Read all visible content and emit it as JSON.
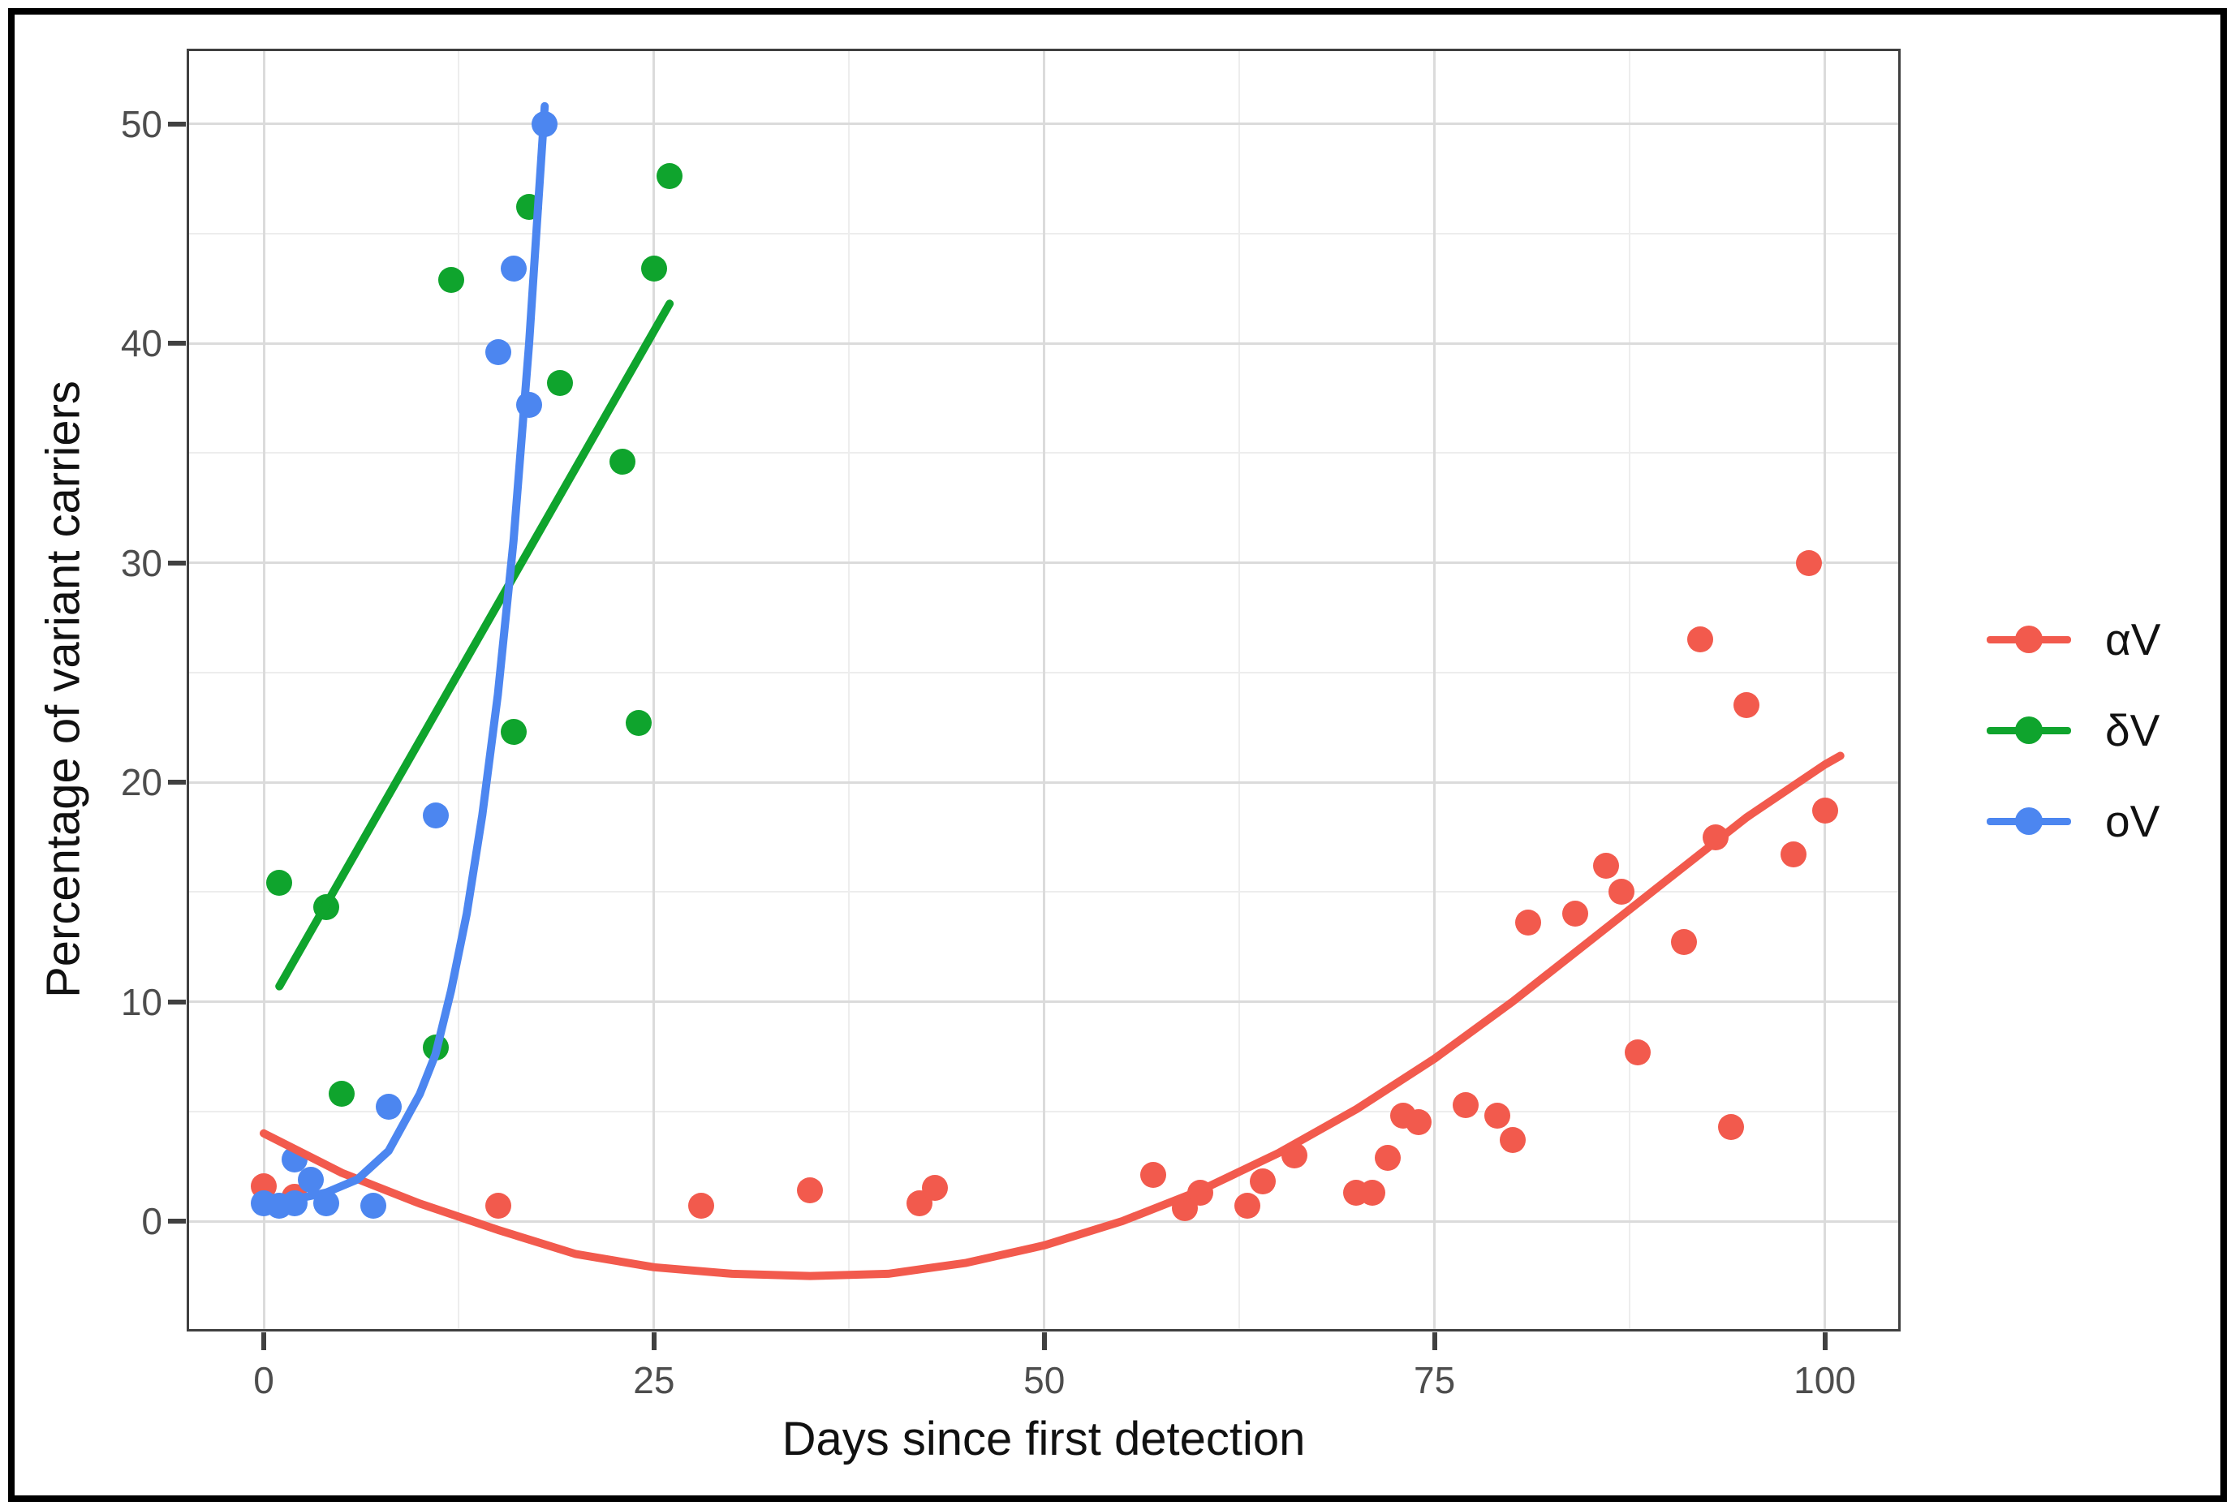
{
  "figure": {
    "background": "#ffffff",
    "frame_color": "#000000",
    "panel_border_color": "#404040",
    "gridline_major_color": "#dbdbdb",
    "gridline_minor_color": "#ededed",
    "tick_label_color": "#4d4d4d"
  },
  "chart_data": {
    "type": "scatter",
    "title": "",
    "xlabel": "Days since first detection",
    "ylabel": "Percentage of variant carriers",
    "xlim": [
      -4.9,
      104.8
    ],
    "ylim": [
      -5.0,
      53.4
    ],
    "x_major_ticks": [
      0,
      25,
      50,
      75,
      100
    ],
    "x_minor_gridlines": [
      12.5,
      37.5,
      62.5,
      87.5
    ],
    "y_major_ticks": [
      0,
      10,
      20,
      30,
      40,
      50
    ],
    "y_minor_gridlines": [
      5,
      15,
      25,
      35,
      45
    ],
    "grid": "on",
    "legend_position": "right",
    "series": [
      {
        "name": "αV",
        "color": "#f25a4d",
        "points": [
          [
            0,
            1.6
          ],
          [
            2,
            1.1
          ],
          [
            15,
            0.7
          ],
          [
            28,
            0.7
          ],
          [
            35,
            1.4
          ],
          [
            42,
            0.8
          ],
          [
            43,
            1.5
          ],
          [
            57,
            2.1
          ],
          [
            59,
            0.6
          ],
          [
            60,
            1.3
          ],
          [
            63,
            0.7
          ],
          [
            64,
            1.8
          ],
          [
            66,
            3.0
          ],
          [
            70,
            1.3
          ],
          [
            71,
            1.3
          ],
          [
            72,
            2.9
          ],
          [
            73,
            4.8
          ],
          [
            74,
            4.5
          ],
          [
            77,
            5.3
          ],
          [
            79,
            4.8
          ],
          [
            80,
            3.7
          ],
          [
            81,
            13.6
          ],
          [
            84,
            14.0
          ],
          [
            86,
            16.2
          ],
          [
            87,
            15.0
          ],
          [
            88,
            7.7
          ],
          [
            91,
            12.7
          ],
          [
            92,
            26.5
          ],
          [
            93,
            17.5
          ],
          [
            94,
            4.3
          ],
          [
            95,
            23.5
          ],
          [
            98,
            16.7
          ],
          [
            99,
            30.0
          ],
          [
            100,
            18.7
          ]
        ],
        "trend": [
          [
            0,
            4.0
          ],
          [
            5,
            2.2
          ],
          [
            10,
            0.8
          ],
          [
            15,
            -0.4
          ],
          [
            20,
            -1.5
          ],
          [
            25,
            -2.1
          ],
          [
            30,
            -2.4
          ],
          [
            35,
            -2.5
          ],
          [
            40,
            -2.4
          ],
          [
            45,
            -1.9
          ],
          [
            50,
            -1.1
          ],
          [
            55,
            0.0
          ],
          [
            60,
            1.4
          ],
          [
            65,
            3.1
          ],
          [
            70,
            5.1
          ],
          [
            75,
            7.4
          ],
          [
            80,
            10.0
          ],
          [
            85,
            12.8
          ],
          [
            90,
            15.6
          ],
          [
            95,
            18.4
          ],
          [
            100,
            20.8
          ],
          [
            101,
            21.2
          ]
        ]
      },
      {
        "name": "δV",
        "color": "#0fa42d",
        "points": [
          [
            1,
            15.4
          ],
          [
            4,
            14.3
          ],
          [
            5,
            5.8
          ],
          [
            11,
            7.9
          ],
          [
            12,
            42.9
          ],
          [
            16,
            22.3
          ],
          [
            17,
            46.2
          ],
          [
            19,
            38.2
          ],
          [
            23,
            34.6
          ],
          [
            24,
            22.7
          ],
          [
            25,
            43.4
          ],
          [
            26,
            47.6
          ]
        ],
        "trend": [
          [
            1,
            10.7
          ],
          [
            26,
            41.8
          ]
        ]
      },
      {
        "name": "oV",
        "color": "#4c86f0",
        "points": [
          [
            0,
            0.8
          ],
          [
            1,
            0.7
          ],
          [
            2,
            0.8
          ],
          [
            2,
            2.8
          ],
          [
            3,
            1.9
          ],
          [
            4,
            0.8
          ],
          [
            7,
            0.7
          ],
          [
            8,
            5.2
          ],
          [
            11,
            18.5
          ],
          [
            15,
            39.6
          ],
          [
            16,
            43.4
          ],
          [
            17,
            37.2
          ],
          [
            18,
            50.0
          ]
        ],
        "trend": [
          [
            0,
            0.8
          ],
          [
            2,
            1.0
          ],
          [
            4,
            1.3
          ],
          [
            6,
            1.9
          ],
          [
            8,
            3.2
          ],
          [
            10,
            5.8
          ],
          [
            11,
            7.6
          ],
          [
            12,
            10.5
          ],
          [
            13,
            14.0
          ],
          [
            14,
            18.5
          ],
          [
            15,
            24.0
          ],
          [
            16,
            31.0
          ],
          [
            17,
            40.0
          ],
          [
            17.6,
            46.5
          ],
          [
            18,
            50.8
          ]
        ]
      }
    ]
  }
}
